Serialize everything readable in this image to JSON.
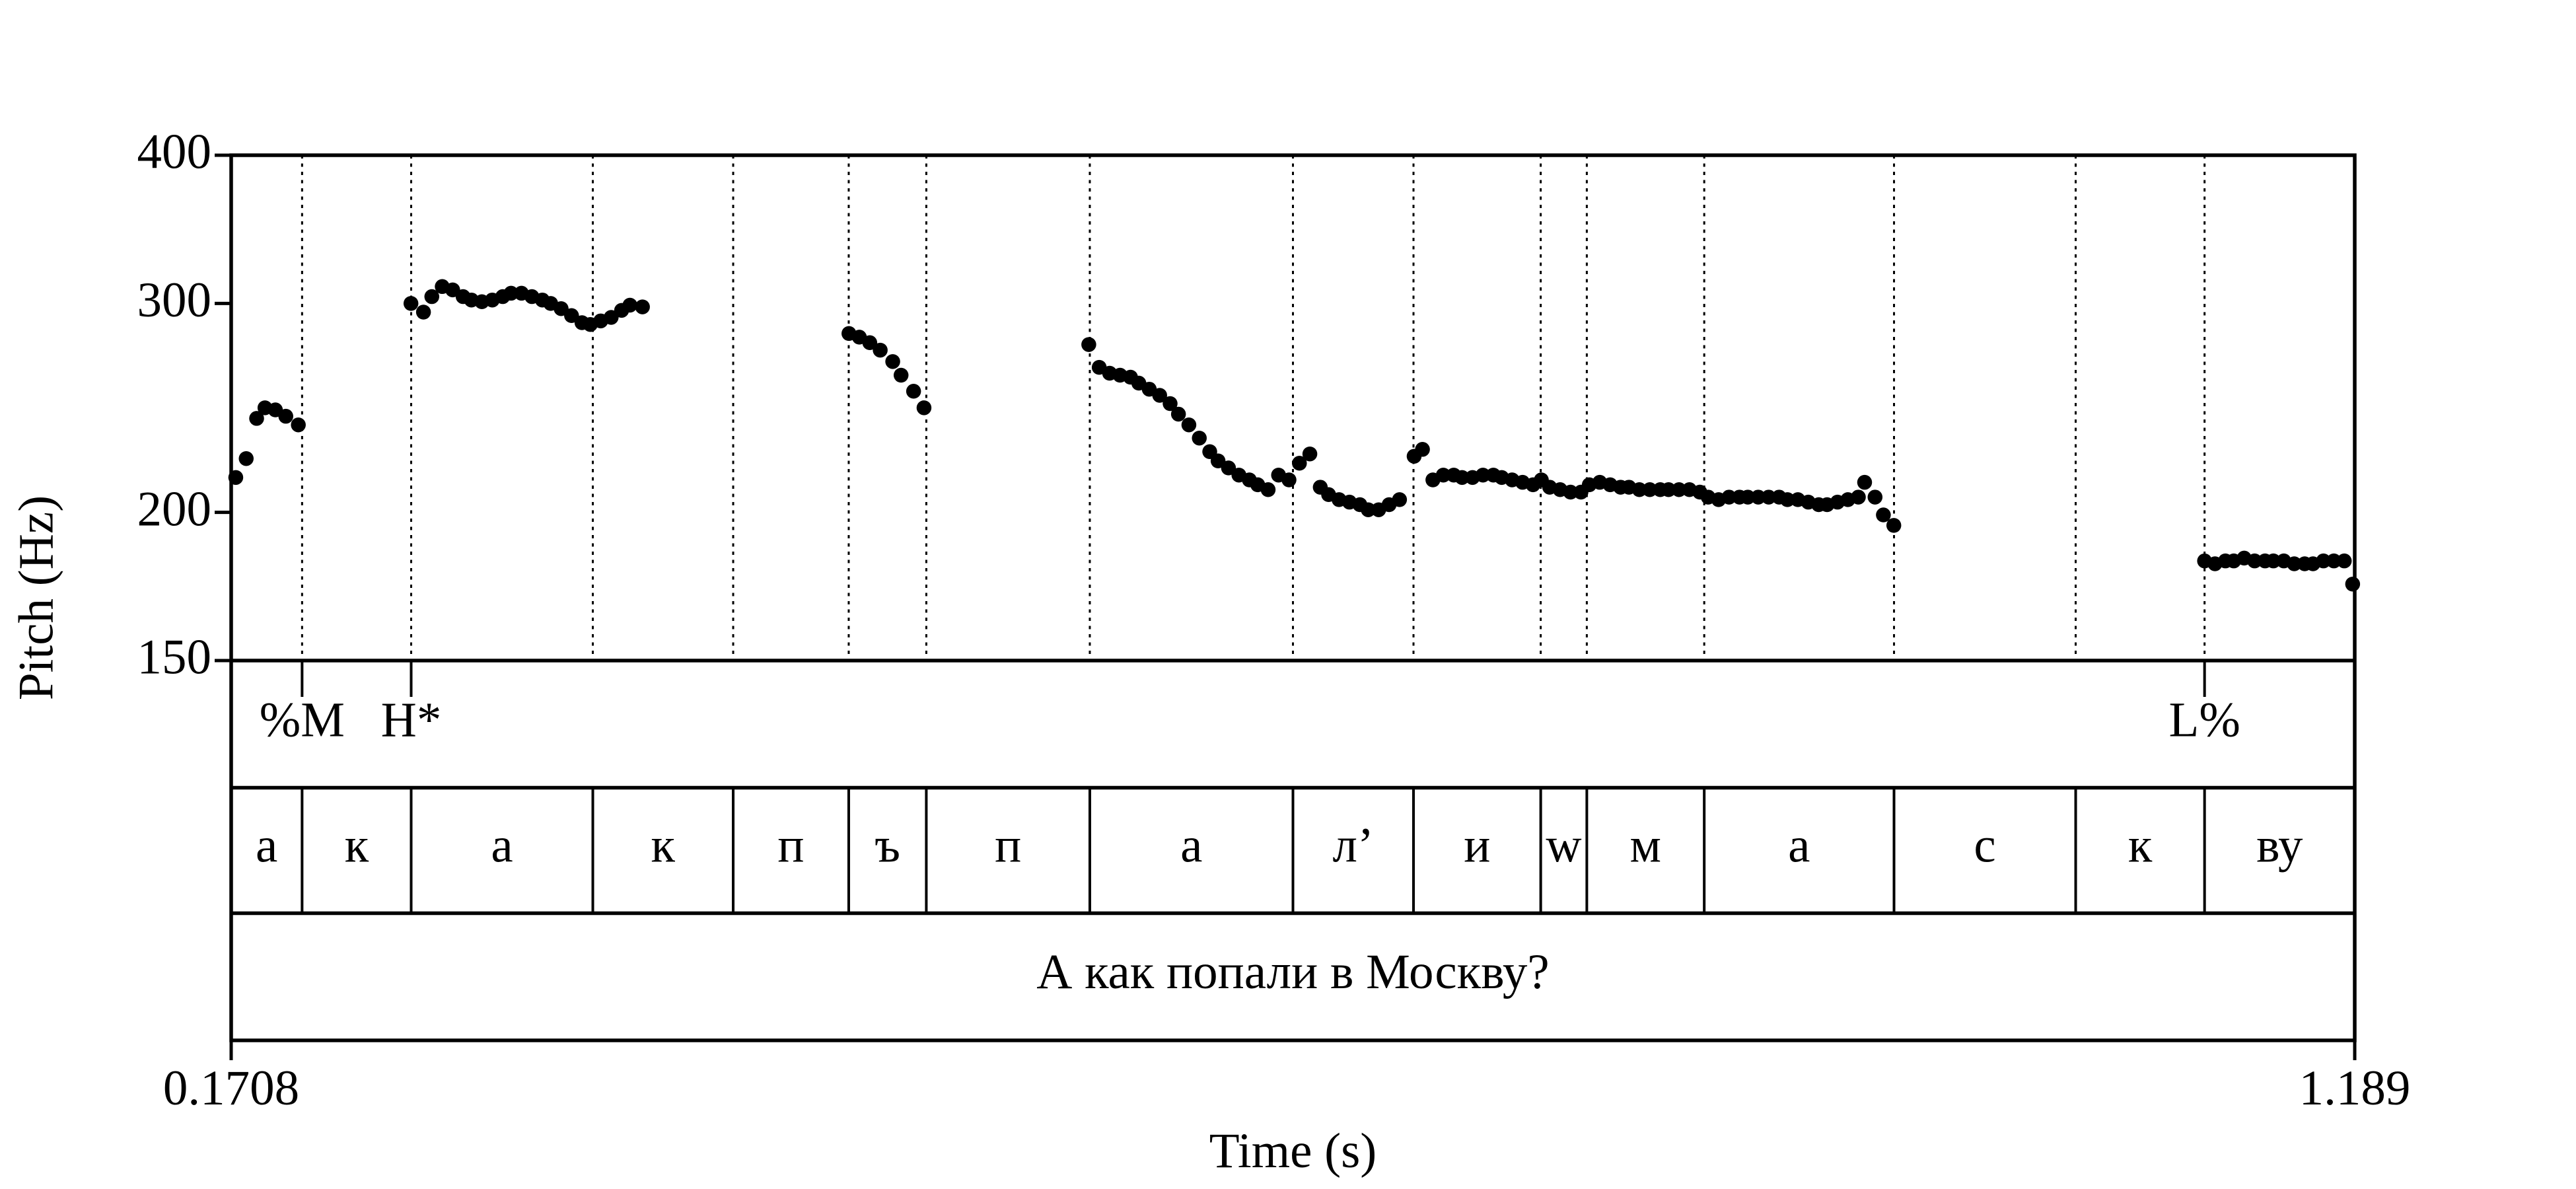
{
  "chart_data": {
    "type": "scatter",
    "color": "#000000",
    "ylabel": "Pitch (Hz)",
    "xlabel": "Time (s)",
    "xlim": [
      0.1708,
      1.189
    ],
    "xticks": [
      0.1708,
      1.189
    ],
    "ylim": [
      150,
      400
    ],
    "yticks": [
      150,
      200,
      300,
      400
    ],
    "yscale": "log",
    "x": [
      0.173,
      0.178,
      0.183,
      0.187,
      0.192,
      0.197,
      0.203,
      0.257,
      0.263,
      0.267,
      0.272,
      0.277,
      0.282,
      0.286,
      0.291,
      0.296,
      0.301,
      0.305,
      0.31,
      0.315,
      0.32,
      0.324,
      0.329,
      0.334,
      0.339,
      0.343,
      0.348,
      0.353,
      0.358,
      0.362,
      0.368,
      0.467,
      0.472,
      0.477,
      0.482,
      0.488,
      0.492,
      0.498,
      0.503,
      0.582,
      0.587,
      0.592,
      0.597,
      0.602,
      0.606,
      0.611,
      0.616,
      0.621,
      0.625,
      0.63,
      0.635,
      0.64,
      0.644,
      0.649,
      0.654,
      0.659,
      0.663,
      0.668,
      0.673,
      0.678,
      0.683,
      0.688,
      0.693,
      0.697,
      0.702,
      0.707,
      0.712,
      0.716,
      0.721,
      0.726,
      0.731,
      0.738,
      0.742,
      0.747,
      0.752,
      0.757,
      0.761,
      0.766,
      0.771,
      0.776,
      0.78,
      0.785,
      0.79,
      0.795,
      0.799,
      0.803,
      0.808,
      0.813,
      0.818,
      0.822,
      0.827,
      0.832,
      0.837,
      0.841,
      0.846,
      0.851,
      0.856,
      0.86,
      0.865,
      0.87,
      0.875,
      0.879,
      0.884,
      0.889,
      0.894,
      0.898,
      0.903,
      0.908,
      0.913,
      0.917,
      0.922,
      0.927,
      0.932,
      0.936,
      0.941,
      0.946,
      0.951,
      0.954,
      0.959,
      0.963,
      0.968,
      1.117,
      1.122,
      1.127,
      1.131,
      1.136,
      1.141,
      1.146,
      1.15,
      1.155,
      1.16,
      1.165,
      1.169,
      1.174,
      1.179,
      1.184,
      1.188
    ],
    "values": [
      214,
      222,
      240,
      245,
      244,
      241,
      237,
      300,
      295,
      304,
      310,
      308,
      304,
      302,
      301,
      302,
      304,
      306,
      306,
      304,
      302,
      300,
      297,
      293,
      289,
      288,
      290,
      292,
      296,
      299,
      298,
      283,
      281,
      278,
      274,
      268,
      261,
      253,
      245,
      277,
      265,
      262,
      261,
      260,
      257,
      254,
      251,
      247,
      242,
      237,
      231,
      225,
      221,
      218,
      215,
      213,
      211,
      209,
      215,
      213,
      220,
      224,
      210,
      207,
      205,
      204,
      203,
      201,
      201,
      203,
      205,
      223,
      226,
      213,
      215,
      215,
      214,
      214,
      215,
      215,
      214,
      213,
      212,
      211,
      213,
      210,
      209,
      208,
      208,
      211,
      212,
      211,
      210,
      210,
      209,
      209,
      209,
      209,
      209,
      209,
      208,
      206,
      205,
      206,
      206,
      206,
      206,
      206,
      206,
      205,
      205,
      204,
      203,
      203,
      204,
      205,
      206,
      212,
      206,
      199,
      195,
      182,
      181,
      182,
      182,
      183,
      182,
      182,
      182,
      182,
      181,
      181,
      181,
      182,
      182,
      182,
      174
    ],
    "tones": {
      "labels": [
        "%M",
        "H*",
        "L%"
      ],
      "times": [
        0.2048,
        0.2571,
        1.117
      ]
    },
    "segments": {
      "labels": [
        "а",
        "к",
        "а",
        "к",
        "п",
        "ъ",
        "п",
        "а",
        "л’",
        "и",
        "w",
        "м",
        "а",
        "с",
        "к",
        "ву"
      ],
      "boundaries": [
        0.2048,
        0.2571,
        0.3442,
        0.4115,
        0.4669,
        0.5041,
        0.5825,
        0.6799,
        0.7377,
        0.7987,
        0.8208,
        0.8771,
        0.9681,
        1.0552,
        1.117
      ]
    },
    "sentence": "А как попали в Москву?"
  }
}
